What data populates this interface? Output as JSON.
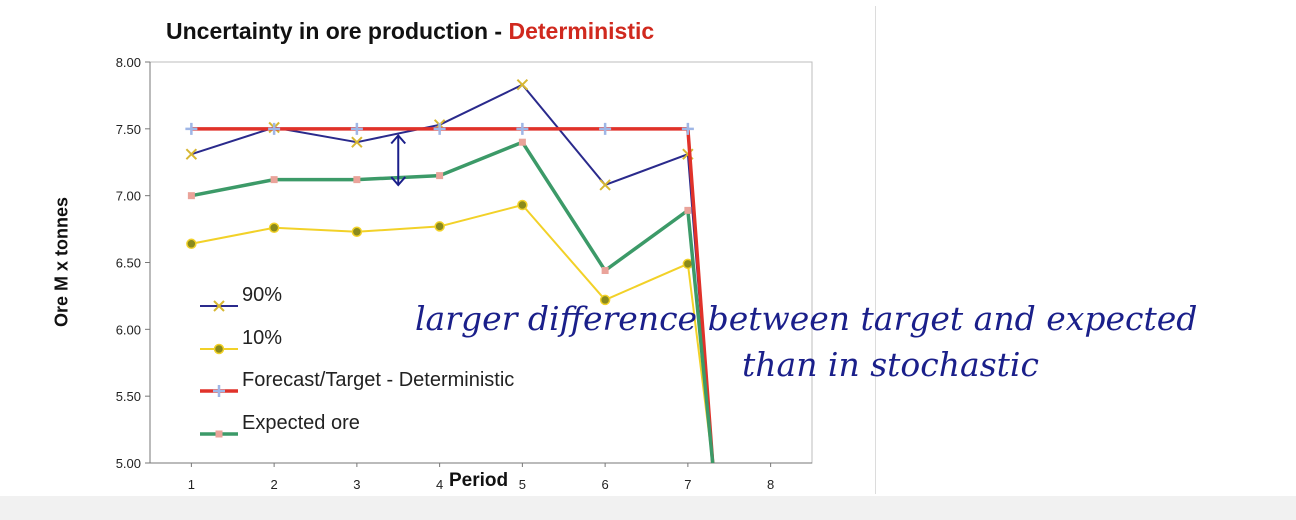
{
  "chart_data": {
    "type": "line",
    "title": "Uncertainty in ore production - ",
    "title_accent": "Deterministic",
    "xlabel": "Period",
    "ylabel": "Ore M x tonnes",
    "x": [
      1,
      2,
      3,
      4,
      5,
      6,
      7,
      8
    ],
    "x_tick_labels": [
      "1",
      "2",
      "3",
      "4",
      "5",
      "6",
      "7",
      "8"
    ],
    "y_tick_labels": [
      "5.00",
      "5.50",
      "6.00",
      "6.50",
      "7.00",
      "7.50",
      "8.00"
    ],
    "xlim": [
      0.5,
      8.5
    ],
    "ylim": [
      5.0,
      8.0
    ],
    "grid": false,
    "legend_position": "bottom-left",
    "series": [
      {
        "name": "90%",
        "color": "#2a2a8c",
        "marker": "x-mark",
        "x": [
          1,
          2,
          3,
          4,
          5,
          6,
          7,
          7.3
        ],
        "values": [
          7.31,
          7.51,
          7.4,
          7.53,
          7.83,
          7.08,
          7.31,
          5.0
        ]
      },
      {
        "name": "10%",
        "color": "#f2d128",
        "marker": "dot",
        "x": [
          1,
          2,
          3,
          4,
          5,
          6,
          7,
          7.3
        ],
        "values": [
          6.64,
          6.76,
          6.73,
          6.77,
          6.93,
          6.22,
          6.49,
          5.0
        ]
      },
      {
        "name": "Forecast/Target - Deterministic",
        "color": "#e0322a",
        "marker": "plus",
        "x": [
          1,
          2,
          3,
          4,
          5,
          6,
          7,
          7.3
        ],
        "values": [
          7.5,
          7.5,
          7.5,
          7.5,
          7.5,
          7.5,
          7.5,
          5.0
        ]
      },
      {
        "name": "Expected ore",
        "color": "#3c9a68",
        "marker": "square",
        "x": [
          1,
          2,
          3,
          4,
          5,
          6,
          7,
          7.3
        ],
        "values": [
          7.0,
          7.12,
          7.12,
          7.15,
          7.4,
          6.44,
          6.89,
          5.0
        ]
      }
    ]
  },
  "annotations": {
    "line1": "larger difference between target and expected",
    "line2": "than in stochastic",
    "ink_color": "#1a1f8a"
  }
}
